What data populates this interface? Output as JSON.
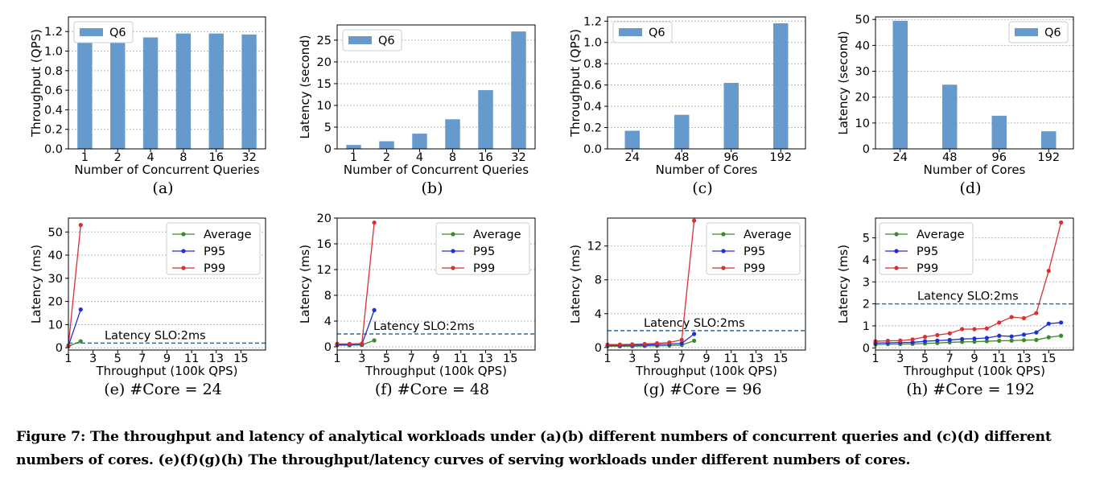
{
  "caption": {
    "line1": "Figure 7: The throughput and latency of analytical workloads under (a)(b) different numbers of concurrent queries and (c)(d) different",
    "line2": "numbers of cores. (e)(f)(g)(h) The throughput/latency curves of serving workloads under different numbers of cores."
  },
  "colors": {
    "bar": "#6699cc",
    "average": "#3a8a2a",
    "p95": "#1c2fd8",
    "p99": "#d93030",
    "slo": "#2a6fa8"
  },
  "chart_data": [
    {
      "type": "bar",
      "panel": "(a)",
      "categories": [
        "1",
        "2",
        "4",
        "8",
        "16",
        "32"
      ],
      "series": [
        {
          "name": "Q6",
          "values": [
            1.14,
            1.14,
            1.14,
            1.18,
            1.18,
            1.17
          ]
        }
      ],
      "xlabel": "Number of Concurrent Queries",
      "ylabel": "Throughput (QPS)",
      "ylim": [
        0,
        1.35
      ],
      "yticks": [
        "0.0",
        "0.2",
        "0.4",
        "0.6",
        "0.8",
        "1.0",
        "1.2"
      ],
      "grid": true,
      "legend": "top-left"
    },
    {
      "type": "bar",
      "panel": "(b)",
      "categories": [
        "1",
        "2",
        "4",
        "8",
        "16",
        "32"
      ],
      "series": [
        {
          "name": "Q6",
          "values": [
            0.9,
            1.75,
            3.5,
            6.8,
            13.5,
            27
          ]
        }
      ],
      "xlabel": "Number of Concurrent Queries",
      "ylabel": "Latency (second)",
      "ylim": [
        0,
        28.5
      ],
      "yticks": [
        "0",
        "5",
        "10",
        "15",
        "20",
        "25"
      ],
      "grid": true,
      "legend": "top-left"
    },
    {
      "type": "bar",
      "panel": "(c)",
      "categories": [
        "24",
        "48",
        "96",
        "192"
      ],
      "series": [
        {
          "name": "Q6",
          "values": [
            0.17,
            0.32,
            0.62,
            1.18
          ]
        }
      ],
      "xlabel": "Number of Cores",
      "ylabel": "Throughput (QPS)",
      "ylim": [
        0,
        1.24
      ],
      "yticks": [
        "0.0",
        "0.2",
        "0.4",
        "0.6",
        "0.8",
        "1.0",
        "1.2"
      ],
      "grid": true,
      "legend": "top-left"
    },
    {
      "type": "bar",
      "panel": "(d)",
      "categories": [
        "24",
        "48",
        "96",
        "192"
      ],
      "series": [
        {
          "name": "Q6",
          "values": [
            49.5,
            24.8,
            12.8,
            6.8
          ]
        }
      ],
      "xlabel": "Number of Cores",
      "ylabel": "Latency (second)",
      "ylim": [
        0,
        51
      ],
      "yticks": [
        "0",
        "10",
        "20",
        "30",
        "40",
        "50"
      ],
      "grid": true,
      "legend": "top-right"
    },
    {
      "type": "line",
      "panel": "(e)",
      "subtitle": "#Core = 24",
      "series": [
        {
          "name": "Average",
          "x": [
            1,
            2
          ],
          "y": [
            0.6,
            2.8
          ]
        },
        {
          "name": "P95",
          "x": [
            1,
            2
          ],
          "y": [
            0.8,
            16.5
          ]
        },
        {
          "name": "P99",
          "x": [
            1,
            2
          ],
          "y": [
            1.0,
            53
          ]
        }
      ],
      "xlabel": "Throughput (100k QPS)",
      "ylabel": "Latency (ms)",
      "xlim": [
        1,
        17
      ],
      "ylim": [
        -1,
        56
      ],
      "xticks": [
        "1",
        "3",
        "5",
        "7",
        "9",
        "11",
        "13",
        "15"
      ],
      "yticks": [
        "0",
        "10",
        "20",
        "30",
        "40",
        "50"
      ],
      "slo": {
        "value": 2,
        "label": "Latency SLO:2ms"
      },
      "grid": "y",
      "legend": "top-right"
    },
    {
      "type": "line",
      "panel": "(f)",
      "subtitle": "#Core = 48",
      "series": [
        {
          "name": "Average",
          "x": [
            1,
            2,
            3,
            4
          ],
          "y": [
            0.25,
            0.25,
            0.3,
            1.0
          ]
        },
        {
          "name": "P95",
          "x": [
            1,
            2,
            3,
            4
          ],
          "y": [
            0.35,
            0.35,
            0.4,
            5.7
          ]
        },
        {
          "name": "P99",
          "x": [
            1,
            2,
            3,
            4
          ],
          "y": [
            0.45,
            0.45,
            0.5,
            19.3
          ]
        }
      ],
      "xlabel": "Throughput (100k QPS)",
      "ylabel": "Latency (ms)",
      "xlim": [
        1,
        17
      ],
      "ylim": [
        -0.5,
        20
      ],
      "xticks": [
        "1",
        "3",
        "5",
        "7",
        "9",
        "11",
        "13",
        "15"
      ],
      "yticks": [
        "0",
        "4",
        "8",
        "12",
        "16",
        "20"
      ],
      "slo": {
        "value": 2,
        "label": "Latency SLO:2ms"
      },
      "grid": "y",
      "legend": "top-right"
    },
    {
      "type": "line",
      "panel": "(g)",
      "subtitle": "#Core = 96",
      "series": [
        {
          "name": "Average",
          "x": [
            1,
            2,
            3,
            4,
            5,
            6,
            7,
            8
          ],
          "y": [
            0.15,
            0.15,
            0.15,
            0.18,
            0.2,
            0.22,
            0.3,
            0.8
          ]
        },
        {
          "name": "P95",
          "x": [
            1,
            2,
            3,
            4,
            5,
            6,
            7,
            8
          ],
          "y": [
            0.25,
            0.25,
            0.28,
            0.3,
            0.35,
            0.4,
            0.5,
            1.6
          ]
        },
        {
          "name": "P99",
          "x": [
            1,
            2,
            3,
            4,
            5,
            6,
            7,
            8
          ],
          "y": [
            0.35,
            0.35,
            0.38,
            0.42,
            0.5,
            0.6,
            0.9,
            15
          ]
        }
      ],
      "xlabel": "Throughput (100k QPS)",
      "ylabel": "Latency (ms)",
      "xlim": [
        1,
        17
      ],
      "ylim": [
        -0.3,
        15.3
      ],
      "xticks": [
        "1",
        "3",
        "5",
        "7",
        "9",
        "11",
        "13",
        "15"
      ],
      "yticks": [
        "0",
        "4",
        "8",
        "12"
      ],
      "slo": {
        "value": 2,
        "label": "Latency SLO:2ms"
      },
      "grid": "y",
      "legend": "top-right"
    },
    {
      "type": "line",
      "panel": "(h)",
      "subtitle": "#Core = 192",
      "series": [
        {
          "name": "Average",
          "x": [
            1,
            2,
            3,
            4,
            5,
            6,
            7,
            8,
            9,
            10,
            11,
            12,
            13,
            14,
            15,
            16
          ],
          "y": [
            0.15,
            0.17,
            0.17,
            0.18,
            0.2,
            0.22,
            0.25,
            0.27,
            0.28,
            0.3,
            0.32,
            0.33,
            0.35,
            0.36,
            0.48,
            0.55
          ]
        },
        {
          "name": "P95",
          "x": [
            1,
            2,
            3,
            4,
            5,
            6,
            7,
            8,
            9,
            10,
            11,
            12,
            13,
            14,
            15,
            16
          ],
          "y": [
            0.22,
            0.23,
            0.24,
            0.25,
            0.3,
            0.33,
            0.36,
            0.4,
            0.42,
            0.45,
            0.55,
            0.52,
            0.6,
            0.7,
            1.1,
            1.15
          ]
        },
        {
          "name": "P99",
          "x": [
            1,
            2,
            3,
            4,
            5,
            6,
            7,
            8,
            9,
            10,
            11,
            12,
            13,
            14,
            15,
            16
          ],
          "y": [
            0.3,
            0.32,
            0.33,
            0.38,
            0.5,
            0.58,
            0.66,
            0.85,
            0.85,
            0.88,
            1.15,
            1.4,
            1.35,
            1.58,
            3.5,
            5.7
          ]
        }
      ],
      "xlabel": "Throughput (100k QPS)",
      "ylabel": "Latency (ms)",
      "xlim": [
        1,
        17
      ],
      "ylim": [
        -0.1,
        5.9
      ],
      "xticks": [
        "1",
        "3",
        "5",
        "7",
        "9",
        "11",
        "13",
        "15"
      ],
      "yticks": [
        "0",
        "1",
        "2",
        "3",
        "4",
        "5"
      ],
      "slo": {
        "value": 2,
        "label": "Latency SLO:2ms"
      },
      "grid": "y",
      "legend": "top-left"
    }
  ]
}
